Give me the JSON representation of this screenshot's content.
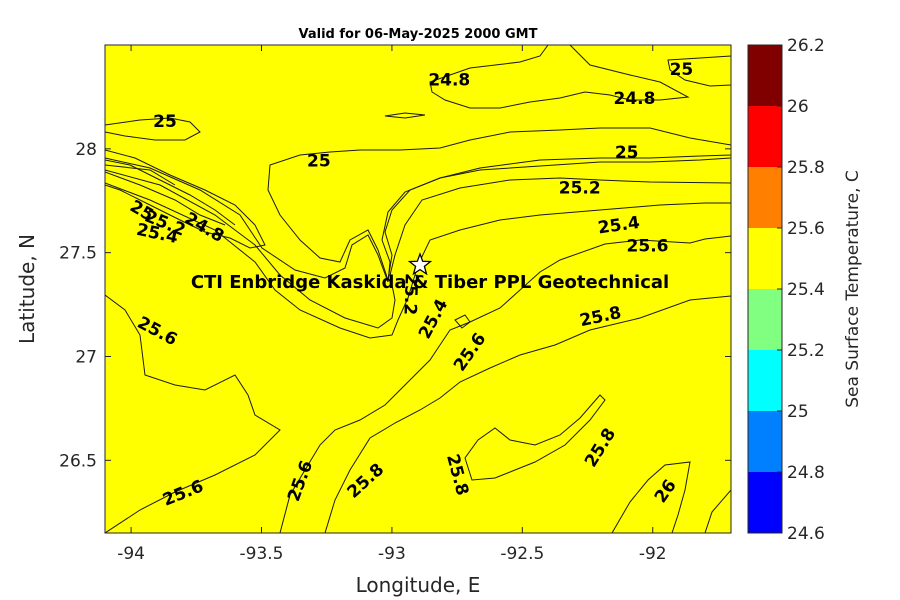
{
  "title": "Valid for 06-May-2025 2000 GMT",
  "site_label": "CTI Enbridge  Kaskida & Tiber PPL Geotechnical",
  "site_marker_icon": "star-icon",
  "x_axis": {
    "label": "Longitude, E",
    "range": [
      -94.1,
      -91.7
    ],
    "ticks": [
      {
        "v": -94,
        "t": "-94"
      },
      {
        "v": -93.5,
        "t": "-93.5"
      },
      {
        "v": -93,
        "t": "-93"
      },
      {
        "v": -92.5,
        "t": "-92.5"
      },
      {
        "v": -92,
        "t": "-92"
      }
    ]
  },
  "y_axis": {
    "label": "Latitude, N",
    "range": [
      26.15,
      28.5
    ],
    "ticks": [
      {
        "v": 26.5,
        "t": "26.5"
      },
      {
        "v": 27,
        "t": "27"
      },
      {
        "v": 27.5,
        "t": "27.5"
      },
      {
        "v": 28,
        "t": "28"
      }
    ]
  },
  "colorbar": {
    "label": "Sea Surface Temperature, C",
    "range": [
      24.6,
      26.2
    ],
    "ticks": [
      {
        "v": 24.6,
        "t": "24.6"
      },
      {
        "v": 24.8,
        "t": "24.8"
      },
      {
        "v": 25,
        "t": "25"
      },
      {
        "v": 25.2,
        "t": "25.2"
      },
      {
        "v": 25.4,
        "t": "25.4"
      },
      {
        "v": 25.6,
        "t": "25.6"
      },
      {
        "v": 25.8,
        "t": "25.8"
      },
      {
        "v": 26,
        "t": "26"
      },
      {
        "v": 26.2,
        "t": "26.2"
      }
    ],
    "bands": [
      {
        "from": 24.6,
        "to": 24.8,
        "color": "#0000ff"
      },
      {
        "from": 24.8,
        "to": 25.0,
        "color": "#0080ff"
      },
      {
        "from": 25.0,
        "to": 25.2,
        "color": "#00ffff"
      },
      {
        "from": 25.2,
        "to": 25.4,
        "color": "#80ff80"
      },
      {
        "from": 25.4,
        "to": 25.6,
        "color": "#ffff00"
      },
      {
        "from": 25.6,
        "to": 25.8,
        "color": "#ff8000"
      },
      {
        "from": 25.8,
        "to": 26.0,
        "color": "#ff0000"
      },
      {
        "from": 26.0,
        "to": 26.2,
        "color": "#800000"
      }
    ]
  },
  "contour_labels": [
    {
      "t": "24.8",
      "lon": -92.78,
      "lat": 28.33,
      "rot": 0
    },
    {
      "t": "25",
      "lon": -91.89,
      "lat": 28.38,
      "rot": 0
    },
    {
      "t": "24.8",
      "lon": -92.07,
      "lat": 28.24,
      "rot": 0
    },
    {
      "t": "25",
      "lon": -93.87,
      "lat": 28.13,
      "rot": 0
    },
    {
      "t": "25",
      "lon": -93.28,
      "lat": 27.94,
      "rot": 0
    },
    {
      "t": "25",
      "lon": -92.1,
      "lat": 27.98,
      "rot": 0
    },
    {
      "t": "25.2",
      "lon": -92.28,
      "lat": 27.81,
      "rot": 0
    },
    {
      "t": "25.4",
      "lon": -92.13,
      "lat": 27.63,
      "rot": -8
    },
    {
      "t": "25.6",
      "lon": -92.02,
      "lat": 27.53,
      "rot": 0
    },
    {
      "t": "25",
      "lon": -93.96,
      "lat": 27.7,
      "rot": 30
    },
    {
      "t": "25.2",
      "lon": -93.87,
      "lat": 27.64,
      "rot": 22
    },
    {
      "t": "24.8",
      "lon": -93.72,
      "lat": 27.62,
      "rot": 30
    },
    {
      "t": "25.4",
      "lon": -93.9,
      "lat": 27.59,
      "rot": 12
    },
    {
      "t": "25.2",
      "lon": -92.93,
      "lat": 27.3,
      "rot": 92
    },
    {
      "t": "25.4",
      "lon": -92.84,
      "lat": 27.18,
      "rot": -62
    },
    {
      "t": "25.6",
      "lon": -93.9,
      "lat": 27.12,
      "rot": 28
    },
    {
      "t": "25.6",
      "lon": -92.7,
      "lat": 27.02,
      "rot": -55
    },
    {
      "t": "25.8",
      "lon": -92.2,
      "lat": 27.19,
      "rot": -12
    },
    {
      "t": "25.6",
      "lon": -93.8,
      "lat": 26.34,
      "rot": -22
    },
    {
      "t": "25.6",
      "lon": -93.35,
      "lat": 26.4,
      "rot": -70
    },
    {
      "t": "25.8",
      "lon": -93.1,
      "lat": 26.4,
      "rot": -42
    },
    {
      "t": "25.8",
      "lon": -92.75,
      "lat": 26.43,
      "rot": 75
    },
    {
      "t": "25.8",
      "lon": -92.2,
      "lat": 26.56,
      "rot": -58
    },
    {
      "t": "26",
      "lon": -91.95,
      "lat": 26.35,
      "rot": -55
    }
  ]
}
